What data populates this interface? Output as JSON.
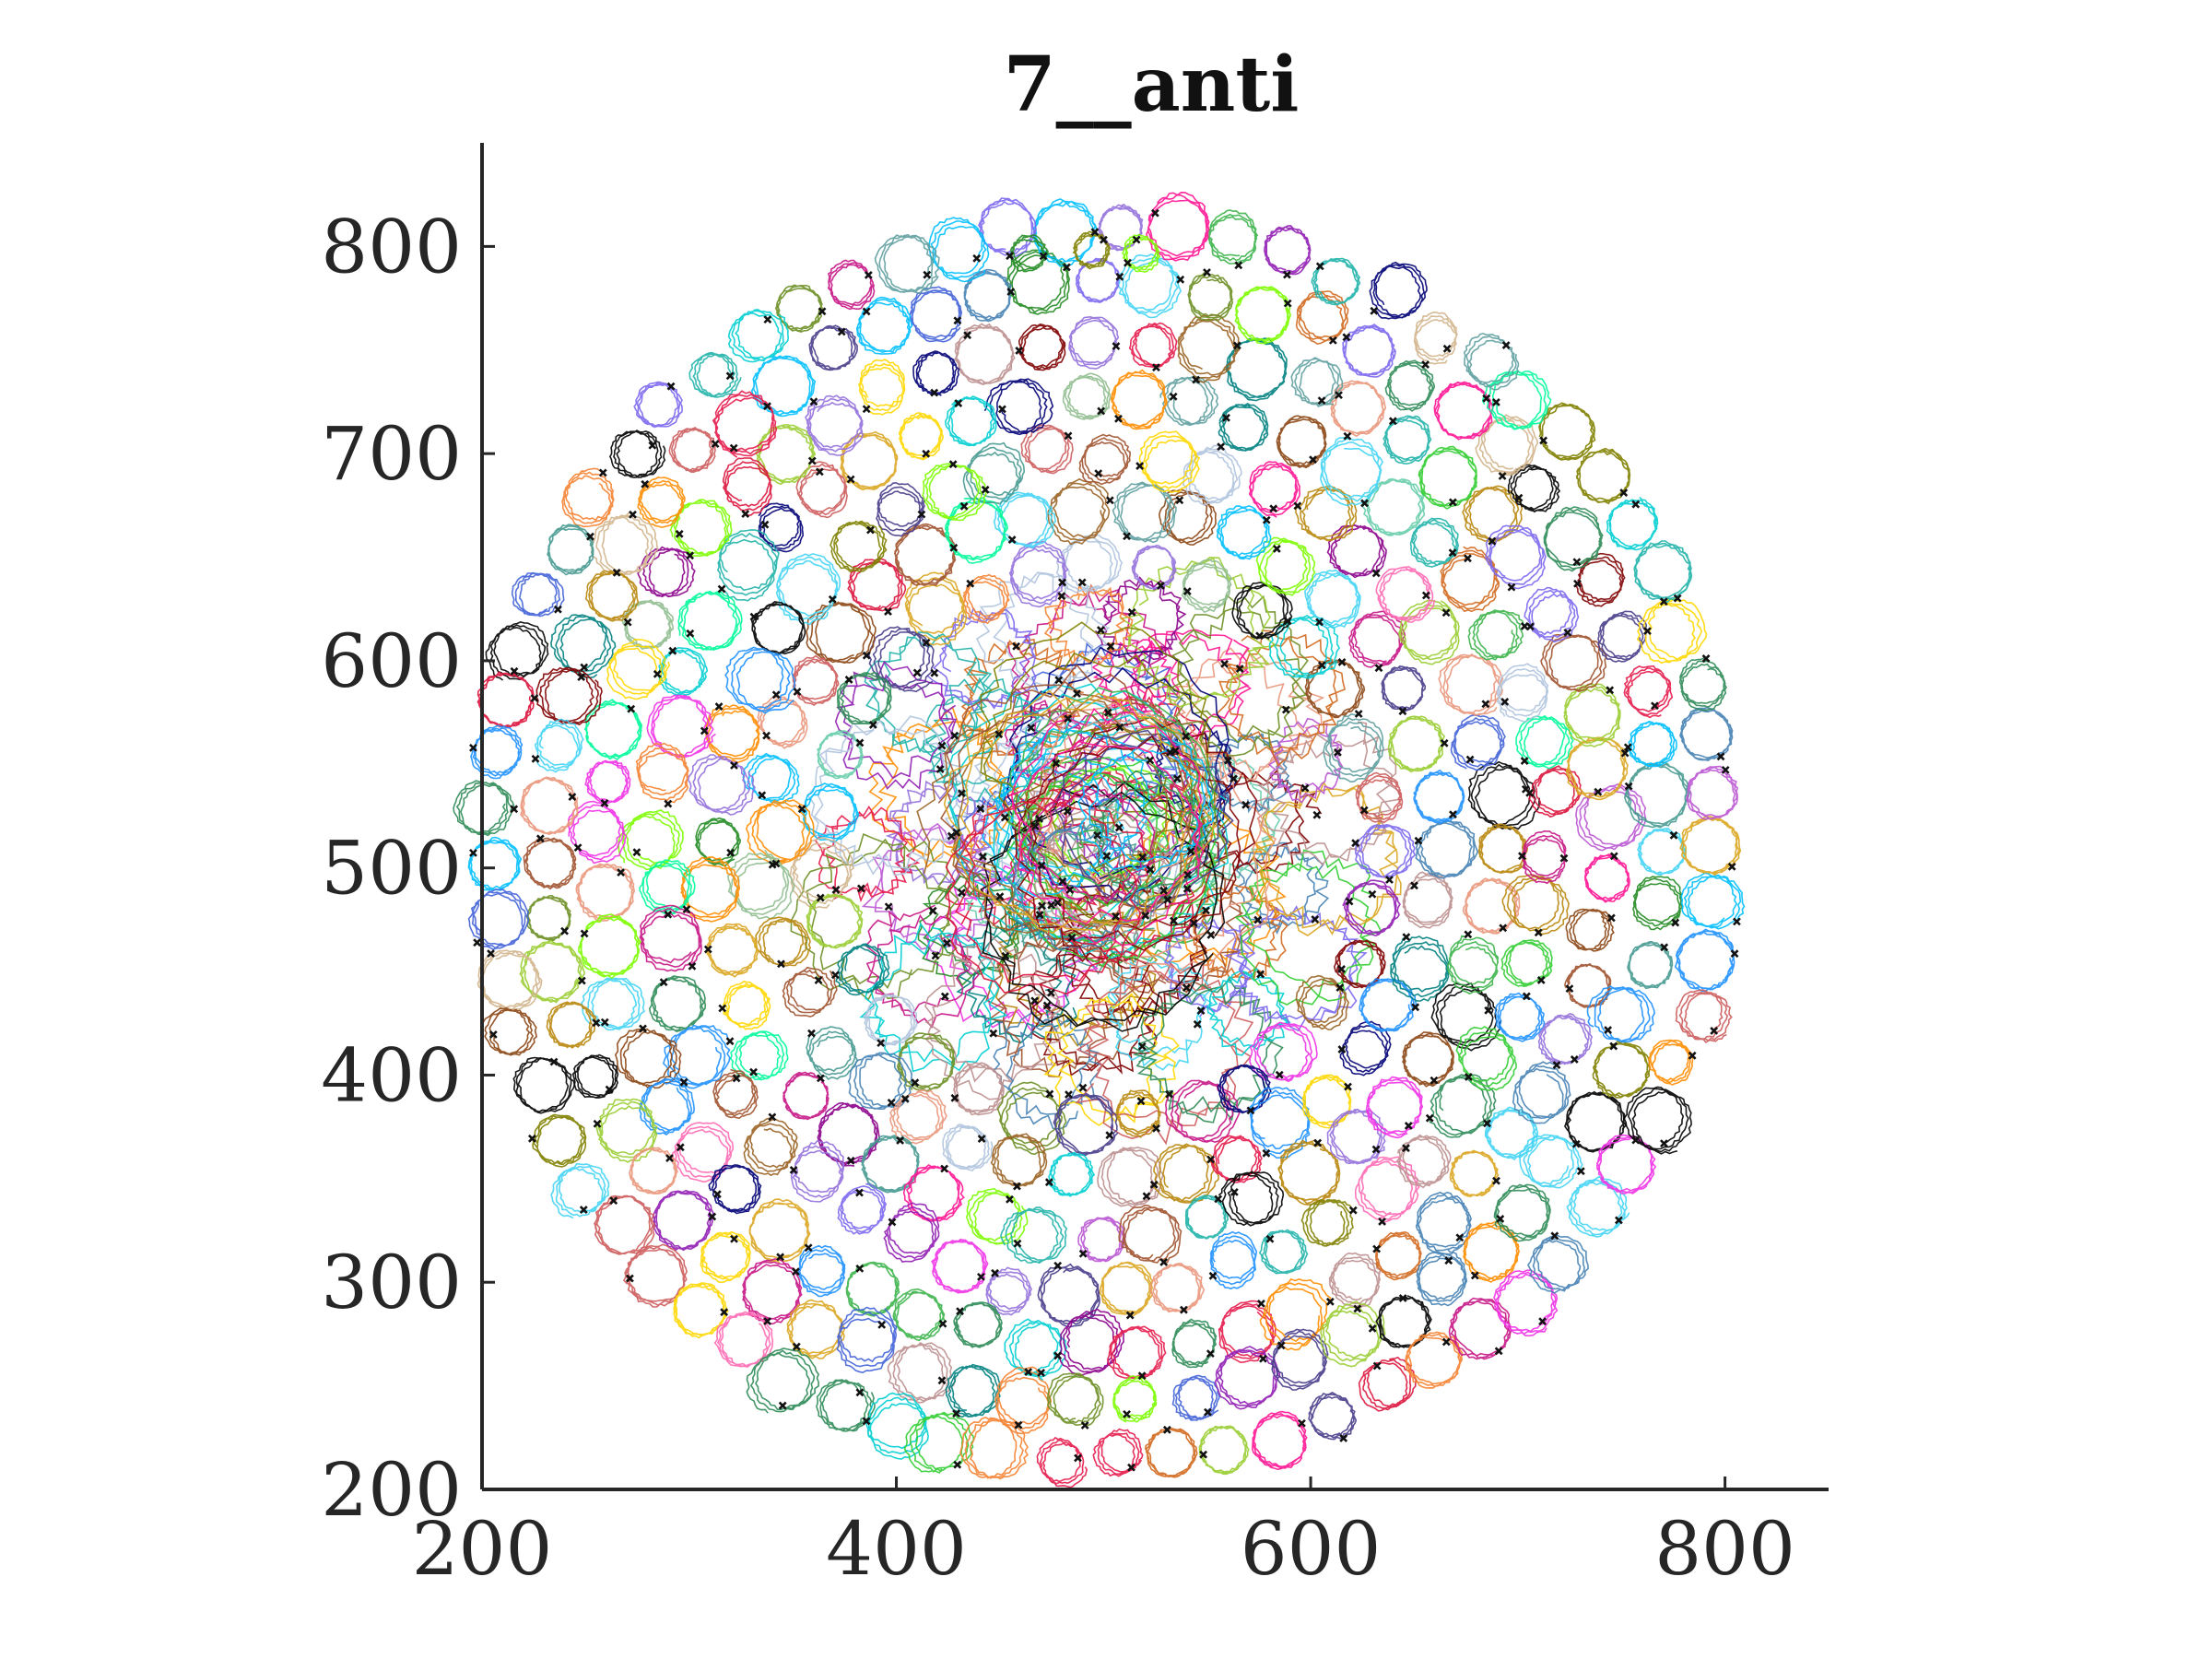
{
  "chart_data": {
    "type": "line",
    "title": "7__anti",
    "xlabel": "",
    "ylabel": "",
    "xlim": [
      200,
      850
    ],
    "ylim": [
      200,
      850
    ],
    "x_ticks": [
      200,
      400,
      600,
      800
    ],
    "y_ticks": [
      200,
      300,
      400,
      500,
      600,
      700,
      800
    ],
    "x_tick_labels": [
      "200",
      "400",
      "600",
      "800"
    ],
    "y_tick_labels": [
      "200",
      "300",
      "400",
      "500",
      "600",
      "700",
      "800"
    ],
    "grid": false,
    "legend": "none",
    "center": [
      500,
      512
    ],
    "pattern_outer_radius": 300,
    "loop_radius_typical": 13,
    "start_marker": "black x at each trajectory start",
    "colors": [
      "#e6194b",
      "#3cb44b",
      "#4363d8",
      "#f58231",
      "#911eb4",
      "#42d4f4",
      "#f032e6",
      "#9acd32",
      "#d2691e",
      "#008080",
      "#9a6324",
      "#800000",
      "#469990",
      "#000075",
      "#ff69b4",
      "#2e8b57",
      "#1e90ff",
      "#8b008b",
      "#daa520",
      "#20b2aa",
      "#dc143c",
      "#6b8e23",
      "#7b68ee",
      "#cd5c5c",
      "#00ced1",
      "#228b22",
      "#b8860b",
      "#4682b4",
      "#c71585",
      "#000000",
      "#ff8c00",
      "#66cdaa",
      "#9370db",
      "#a0522d",
      "#32cd32",
      "#bc8f8f",
      "#00bfff",
      "#ff1493",
      "#808000",
      "#5f9ea0",
      "#d2b48c",
      "#7cfc00",
      "#b0c4de",
      "#e9967a",
      "#8fbc8f",
      "#483d8b",
      "#ffd700",
      "#00fa9a",
      "#8b4513",
      "#ba55d3"
    ]
  }
}
